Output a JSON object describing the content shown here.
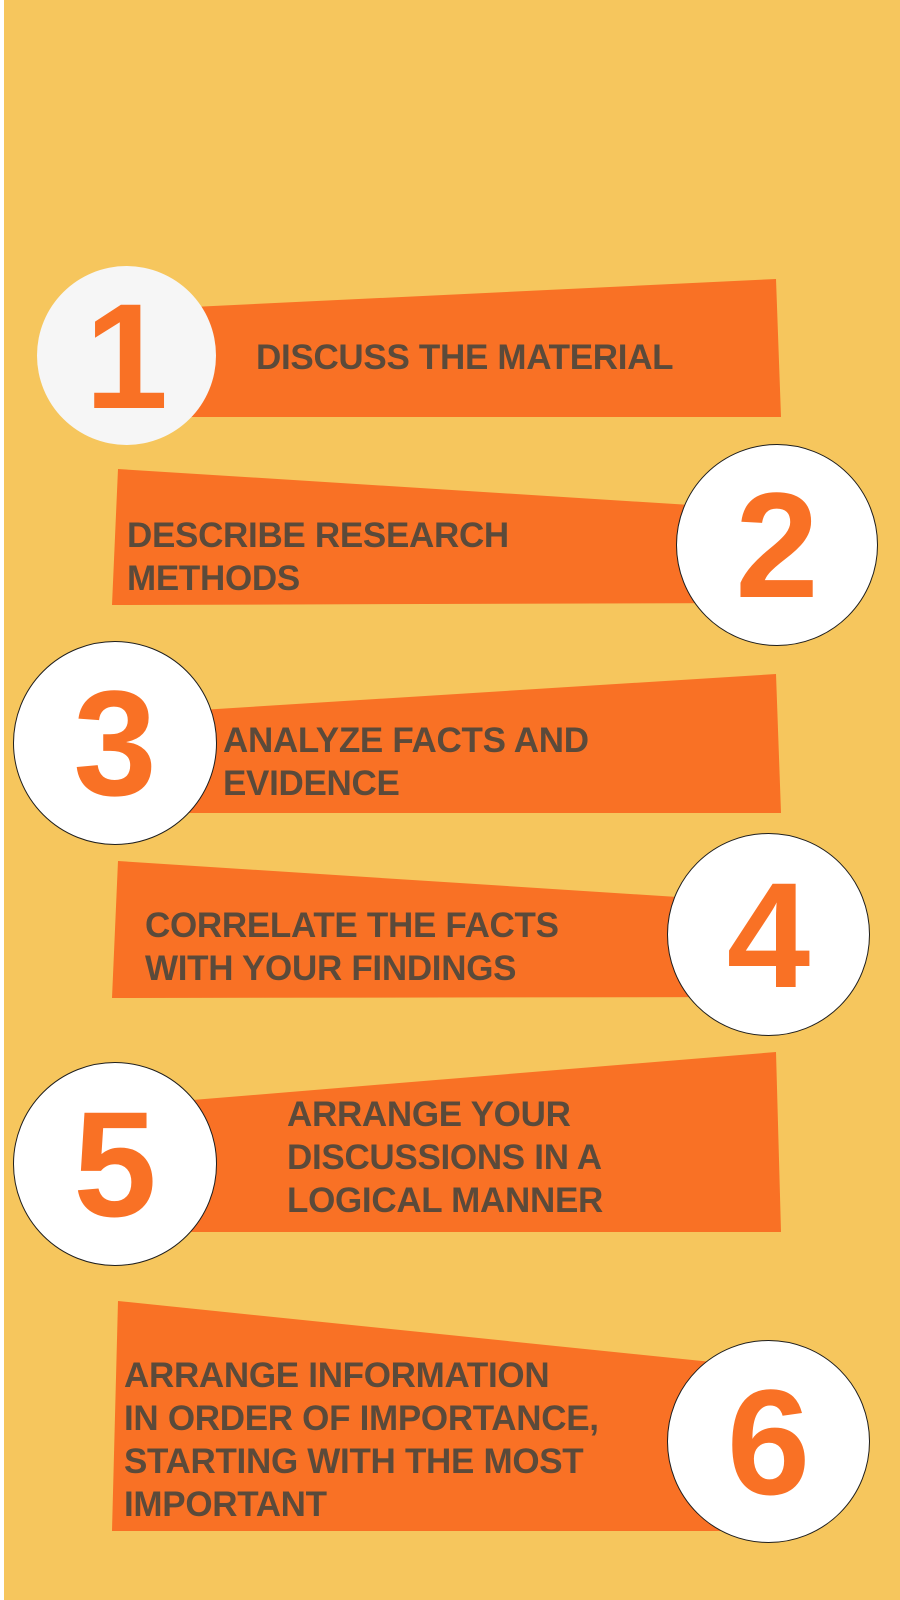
{
  "steps": [
    {
      "number": "1",
      "text": "DISCUSS THE MATERIAL"
    },
    {
      "number": "2",
      "text": "DESCRIBE RESEARCH\nMETHODS"
    },
    {
      "number": "3",
      "text": "ANALYZE FACTS AND\nEVIDENCE"
    },
    {
      "number": "4",
      "text": "CORRELATE THE FACTS\nWITH YOUR FINDINGS"
    },
    {
      "number": "5",
      "text": "ARRANGE YOUR\nDISCUSSIONS IN A\nLOGICAL MANNER"
    },
    {
      "number": "6",
      "text": "ARRANGE INFORMATION\nIN ORDER OF IMPORTANCE,\nSTARTING WITH THE MOST\nIMPORTANT"
    }
  ],
  "colors": {
    "background": "#f6c65d",
    "banner": "#f97125",
    "number": "#f97125",
    "text": "#5b4a3a"
  }
}
